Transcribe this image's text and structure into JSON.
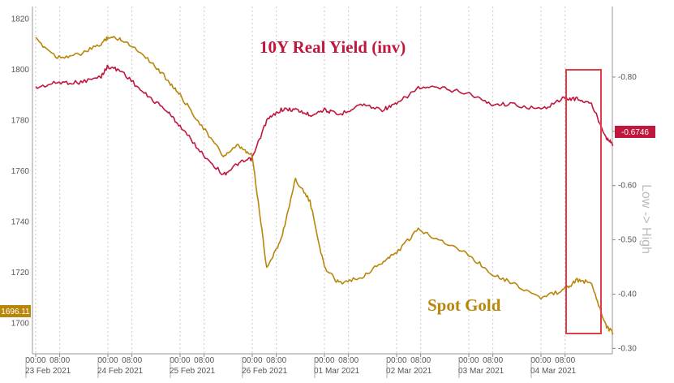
{
  "chart_data": {
    "type": "line",
    "left_axis": {
      "ylim": [
        1688,
        1825
      ],
      "ticks": [
        1700,
        1720,
        1740,
        1760,
        1780,
        1800,
        1820
      ]
    },
    "right_axis": {
      "ylim": [
        0.29,
        0.93
      ],
      "ticks": [
        "0.30",
        "0.40",
        "0.50",
        "0.60",
        "0.70",
        "0.80"
      ],
      "label": "Low -> High",
      "inverted_series": true
    },
    "x_time_ticks": [
      "00:00",
      "08:00"
    ],
    "x_day_labels": [
      "23 Feb 2021",
      "24 Feb 2021",
      "25 Feb 2021",
      "26 Feb 2021",
      "01 Mar 2021",
      "02 Mar 2021",
      "03 Mar 2021",
      "04 Mar 2021"
    ],
    "grid": "vertical",
    "x": [
      0,
      0.3,
      0.6,
      0.9,
      1.0,
      1.2,
      1.5,
      1.8,
      2.0,
      2.3,
      2.6,
      2.8,
      3.0,
      3.2,
      3.4,
      3.6,
      3.8,
      4.0,
      4.2,
      4.5,
      4.8,
      5.0,
      5.3,
      5.6,
      6.0,
      6.3,
      6.6,
      7.0,
      7.3,
      7.5,
      7.7,
      7.9,
      8.0
    ],
    "series": [
      {
        "name": "10Y Real Yield (inv)",
        "axis": "right",
        "color": "#c0173d",
        "values": [
          0.78,
          0.79,
          0.79,
          0.8,
          0.82,
          0.81,
          0.77,
          0.74,
          0.71,
          0.66,
          0.62,
          0.64,
          0.65,
          0.72,
          0.74,
          0.74,
          0.73,
          0.74,
          0.73,
          0.75,
          0.74,
          0.75,
          0.78,
          0.78,
          0.77,
          0.75,
          0.75,
          0.74,
          0.76,
          0.76,
          0.75,
          0.69,
          0.675
        ]
      },
      {
        "name": "Spot Gold",
        "axis": "left",
        "color": "#b8860b",
        "values": [
          1812,
          1805,
          1806,
          1810,
          1813,
          1812,
          1806,
          1797,
          1790,
          1778,
          1766,
          1770,
          1766,
          1722,
          1733,
          1757,
          1748,
          1722,
          1716,
          1718,
          1724,
          1728,
          1737,
          1733,
          1727,
          1720,
          1716,
          1710,
          1713,
          1717,
          1716,
          1699,
          1696
        ]
      }
    ],
    "last_value_tags": {
      "left": "1696.11",
      "right": "-0.6746"
    },
    "highlight_box": {
      "x_from": 7.6,
      "x_to": 8.1,
      "color": "#e23b4a"
    }
  }
}
